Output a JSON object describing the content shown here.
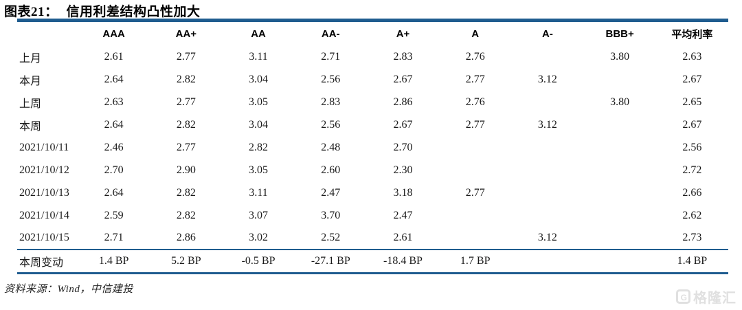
{
  "title": {
    "prefix": "图表21：",
    "text": "信用利差结构凸性加大"
  },
  "source_note": "资料来源：Wind，中信建投",
  "watermark": {
    "icon_letter": "G",
    "text": "格隆汇"
  },
  "colors": {
    "accent_blue": "#1f5c8f",
    "body_text": "#1a1a1a",
    "watermark_gray": "#e0e0e0"
  },
  "chart_data": {
    "type": "table",
    "title": "信用利差结构凸性加大",
    "figure_label": "图表21",
    "columns": [
      "",
      "AAA",
      "AA+",
      "AA",
      "AA-",
      "A+",
      "A",
      "A-",
      "BBB+",
      "平均利率"
    ],
    "rows": [
      {
        "label": "上月",
        "values": [
          "2.61",
          "2.77",
          "3.11",
          "2.71",
          "2.83",
          "2.76",
          "",
          "3.80",
          "2.63"
        ]
      },
      {
        "label": "本月",
        "values": [
          "2.64",
          "2.82",
          "3.04",
          "2.56",
          "2.67",
          "2.77",
          "3.12",
          "",
          "2.67"
        ]
      },
      {
        "label": "上周",
        "values": [
          "2.63",
          "2.77",
          "3.05",
          "2.83",
          "2.86",
          "2.76",
          "",
          "3.80",
          "2.65"
        ]
      },
      {
        "label": "本周",
        "values": [
          "2.64",
          "2.82",
          "3.04",
          "2.56",
          "2.67",
          "2.77",
          "3.12",
          "",
          "2.67"
        ]
      },
      {
        "label": "2021/10/11",
        "values": [
          "2.46",
          "2.77",
          "2.82",
          "2.48",
          "2.70",
          "",
          "",
          "",
          "2.56"
        ]
      },
      {
        "label": "2021/10/12",
        "values": [
          "2.70",
          "2.90",
          "3.05",
          "2.60",
          "2.30",
          "",
          "",
          "",
          "2.72"
        ]
      },
      {
        "label": "2021/10/13",
        "values": [
          "2.64",
          "2.82",
          "3.11",
          "2.47",
          "3.18",
          "2.77",
          "",
          "",
          "2.66"
        ]
      },
      {
        "label": "2021/10/14",
        "values": [
          "2.59",
          "2.82",
          "3.07",
          "3.70",
          "2.47",
          "",
          "",
          "",
          "2.62"
        ]
      },
      {
        "label": "2021/10/15",
        "values": [
          "2.71",
          "2.86",
          "3.02",
          "2.52",
          "2.61",
          "",
          "3.12",
          "",
          "2.73"
        ]
      }
    ],
    "footer_row": {
      "label": "本周变动",
      "values": [
        "1.4 BP",
        "5.2 BP",
        "-0.5 BP",
        "-27.1 BP",
        "-18.4 BP",
        "1.7 BP",
        "",
        "",
        "1.4 BP"
      ]
    },
    "source": "资料来源：Wind，中信建投",
    "layout": {
      "grid": false,
      "header_rule": "thick-blue",
      "footer_rules": "thin-blue-above-and-below"
    }
  }
}
